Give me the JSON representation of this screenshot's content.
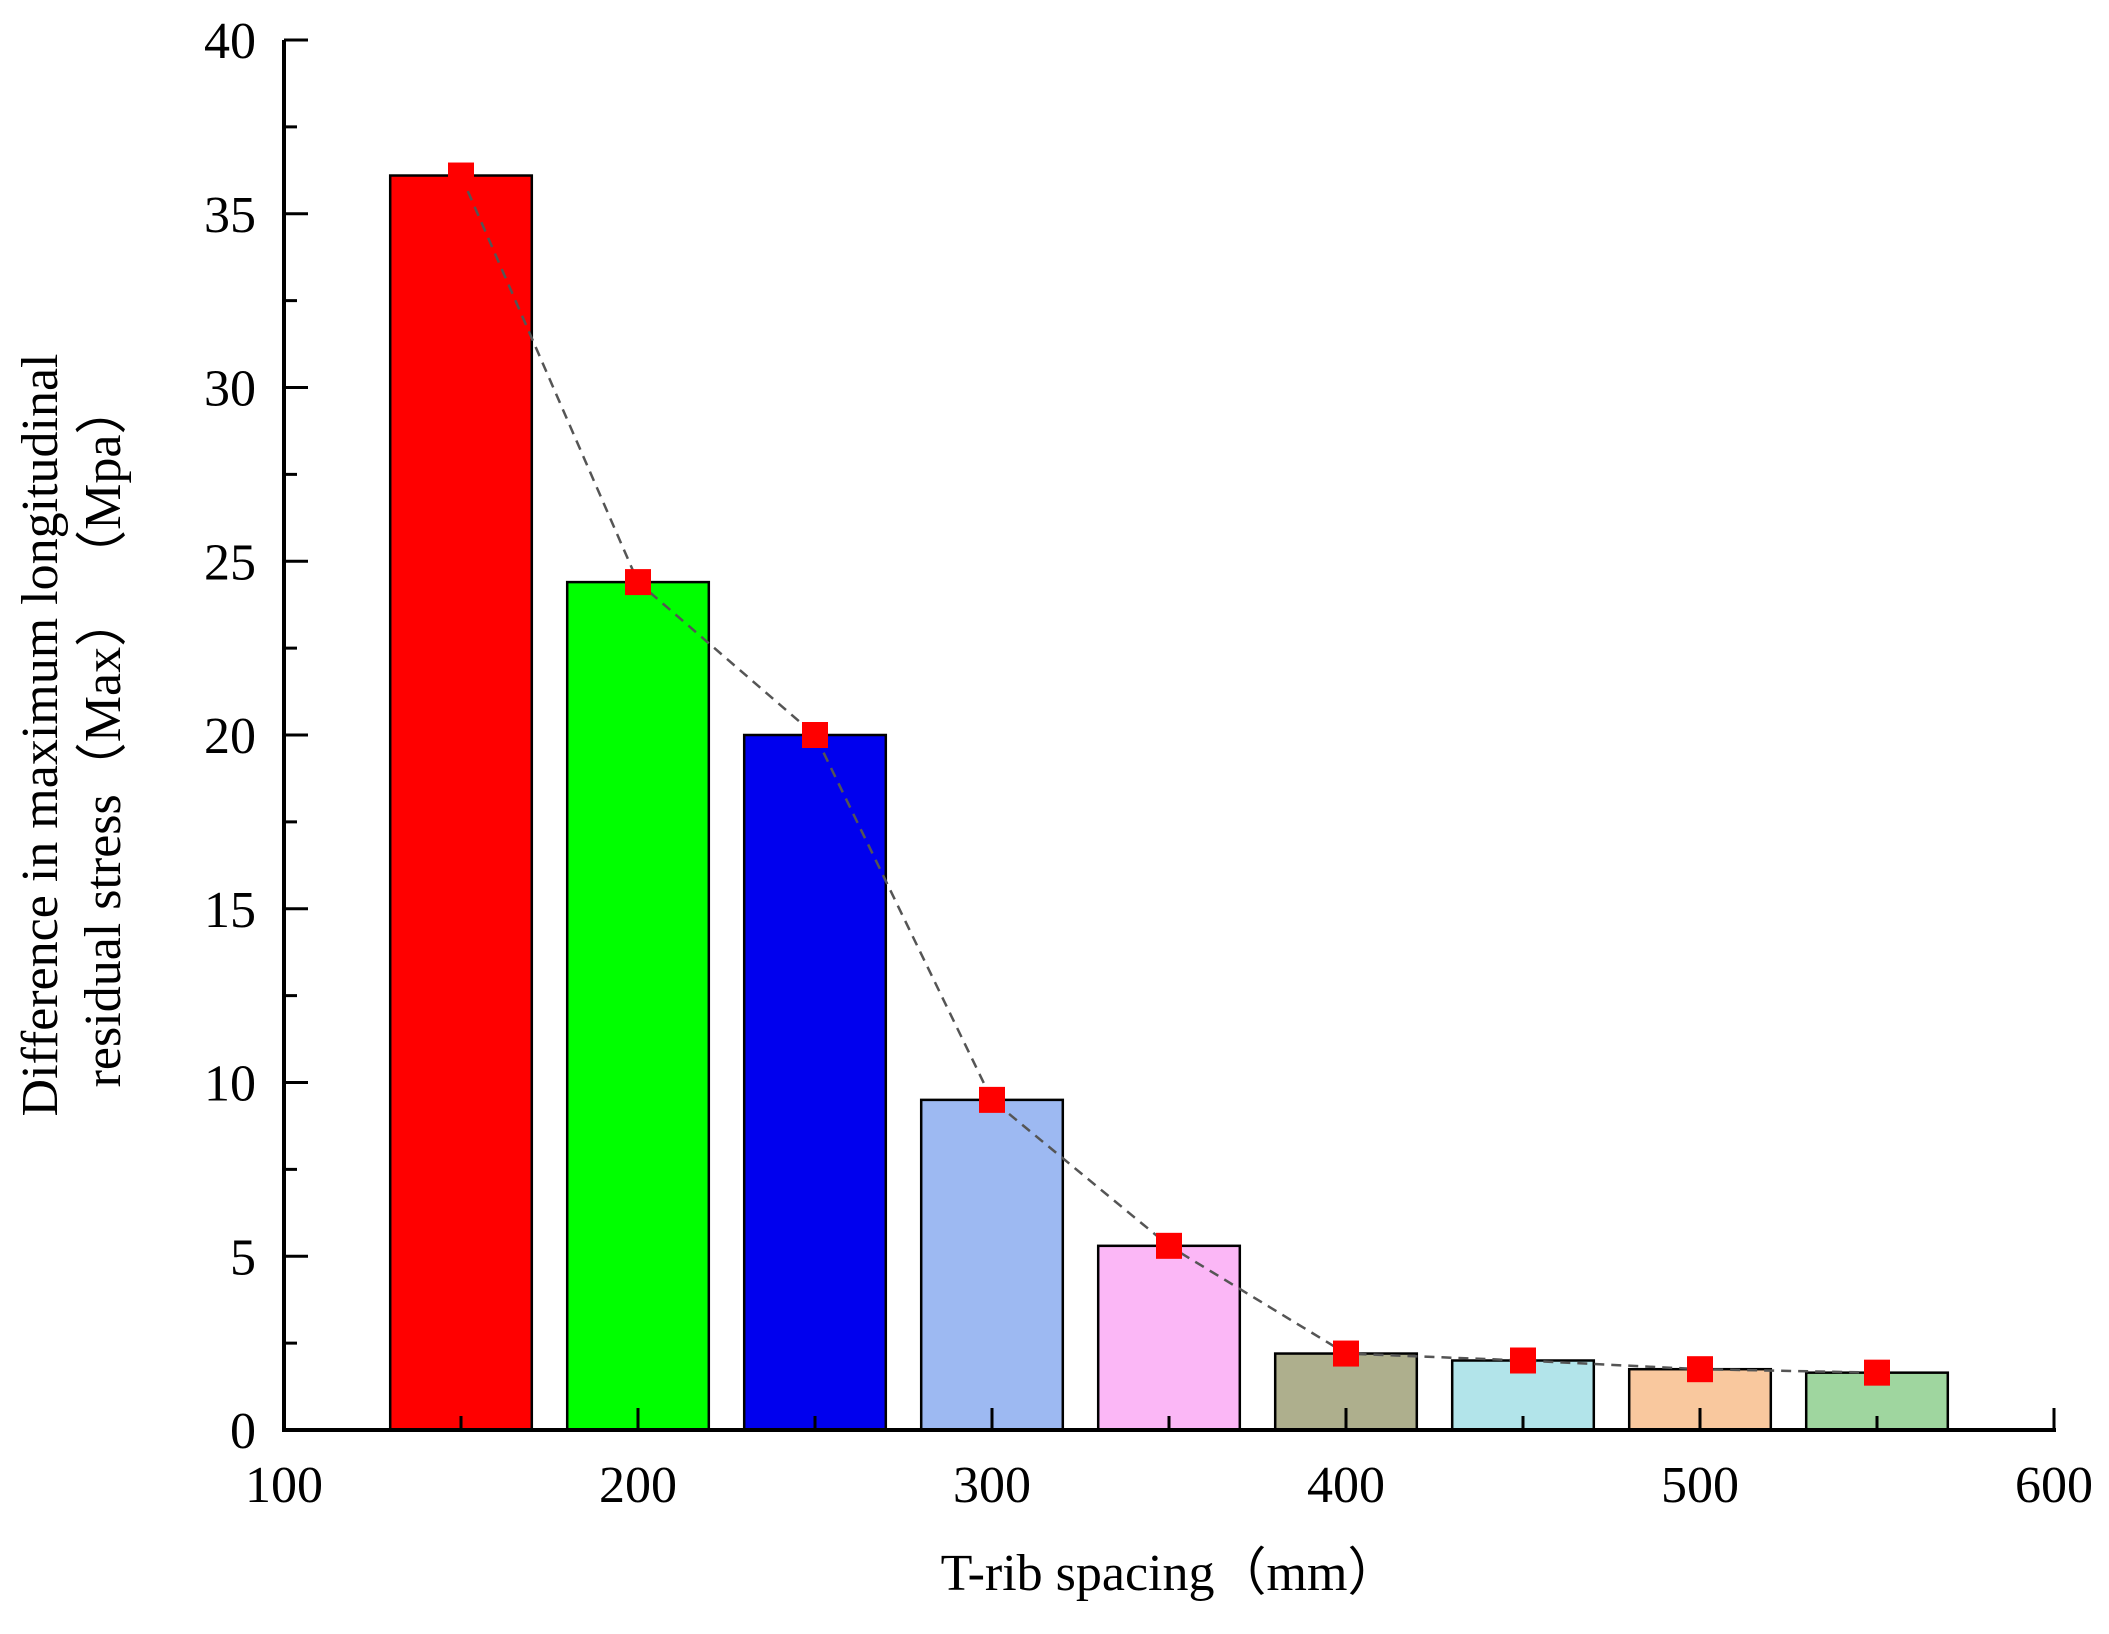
{
  "chart_data": {
    "type": "bar",
    "title": "",
    "xlabel": "T-rib spacing（mm）",
    "ylabel_lines": [
      "Difference in maximum longitudinal",
      "residual stress（Max）   （Mpa）"
    ],
    "xlim": [
      100,
      600
    ],
    "ylim": [
      0,
      40
    ],
    "xticks": [
      "100",
      "200",
      "300",
      "400",
      "500",
      "600"
    ],
    "yticks": [
      "0",
      "5",
      "10",
      "15",
      "20",
      "25",
      "30",
      "35",
      "40"
    ],
    "x": [
      150,
      200,
      250,
      300,
      350,
      400,
      450,
      500,
      550
    ],
    "values": [
      36.1,
      24.4,
      20.0,
      9.5,
      5.3,
      2.2,
      2.0,
      1.75,
      1.65
    ],
    "bar_width": 40,
    "bar_colors": [
      "#ff0000",
      "#00ff00",
      "#0000ee",
      "#9db9f2",
      "#fbb7f6",
      "#aeaf8d",
      "#b2e4ea",
      "#f9c89e",
      "#9fd69f"
    ],
    "overlay_line": {
      "style": "dashed",
      "line_color": "#555555",
      "marker": "square",
      "marker_color": "#ff0000"
    },
    "grid": false,
    "legend": "none"
  }
}
